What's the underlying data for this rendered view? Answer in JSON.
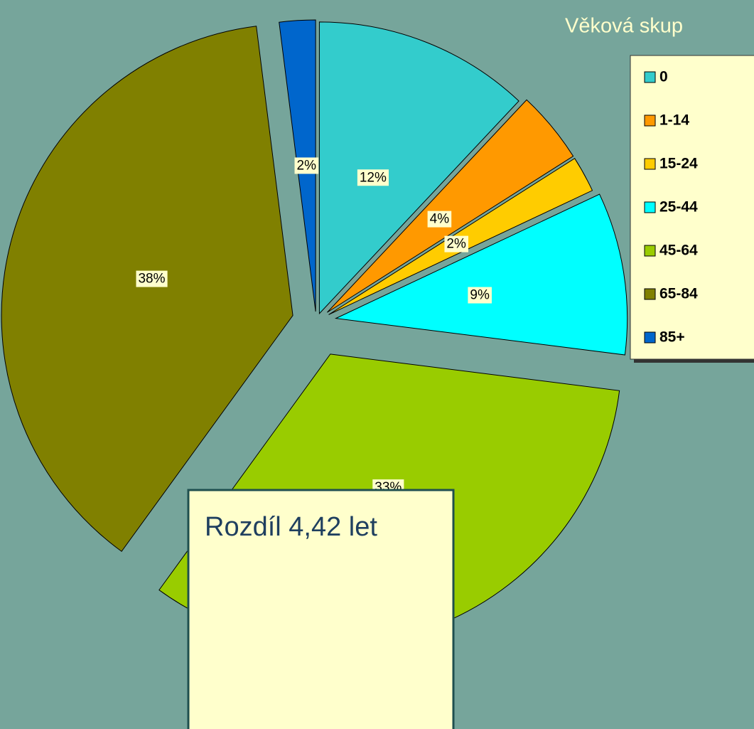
{
  "chart_data": {
    "type": "pie",
    "title": "Věková skup",
    "categories": [
      "0",
      "1-14",
      "15-24",
      "25-44",
      "45-64",
      "65-84",
      "85+"
    ],
    "values": [
      12,
      4,
      2,
      9,
      33,
      38,
      2
    ],
    "value_labels": [
      "12%",
      "4%",
      "2%",
      "9%",
      "33%",
      "38%",
      "2%"
    ],
    "colors": [
      "#33cccc",
      "#ff9900",
      "#ffcc00",
      "#00ffff",
      "#99cc00",
      "#808000",
      "#0066cc"
    ],
    "legend": "right",
    "annotation": "Rozdíl 4,42 let"
  }
}
